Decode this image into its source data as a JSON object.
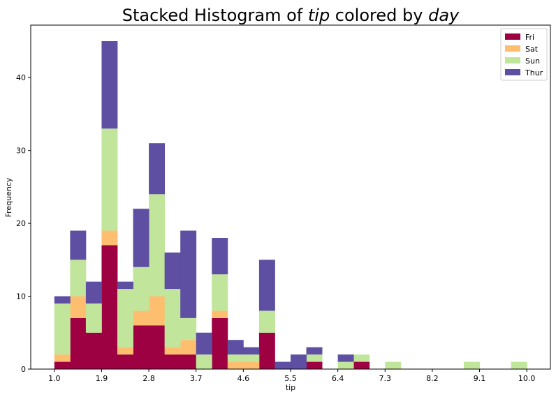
{
  "chart_data": {
    "type": "bar",
    "stacked": true,
    "title": {
      "prefix": "Stacked Histogram of ",
      "var1": "tip",
      "middle": " colored by ",
      "var2": "day"
    },
    "xlabel": "tip",
    "ylabel": "Frequency",
    "xlim": [
      0.55,
      10.45
    ],
    "ylim": [
      0,
      47.2
    ],
    "xticks": [
      1.0,
      1.9,
      2.8,
      3.7,
      4.6,
      5.5,
      6.4,
      7.3,
      8.2,
      9.1,
      10.0
    ],
    "xtick_labels": [
      "1.0",
      "1.9",
      "2.8",
      "3.7",
      "4.6",
      "5.5",
      "6.4",
      "7.3",
      "8.2",
      "9.1",
      "10.0"
    ],
    "yticks": [
      0,
      10,
      20,
      30,
      40
    ],
    "ytick_labels": [
      "0",
      "10",
      "20",
      "30",
      "40"
    ],
    "bin_start": 1.0,
    "bin_width": 0.3,
    "legend_position": "top-right",
    "series": [
      {
        "name": "Fri",
        "color": "#9e0142",
        "values": [
          1,
          7,
          5,
          17,
          2,
          6,
          6,
          2,
          2,
          0,
          7,
          0,
          0,
          5,
          0,
          0,
          1,
          0,
          0,
          1,
          0,
          0,
          0,
          0,
          0,
          0,
          0,
          0,
          0,
          0
        ]
      },
      {
        "name": "Sat",
        "color": "#fdbf6f",
        "values": [
          1,
          3,
          0,
          2,
          1,
          2,
          4,
          1,
          2,
          0,
          1,
          1,
          1,
          0,
          0,
          0,
          0,
          0,
          0,
          0,
          0,
          0,
          0,
          0,
          0,
          0,
          0,
          0,
          0,
          0
        ]
      },
      {
        "name": "Sun",
        "color": "#c2e59c",
        "values": [
          7,
          5,
          4,
          14,
          8,
          6,
          14,
          8,
          3,
          2,
          5,
          1,
          1,
          3,
          0,
          0,
          1,
          0,
          1,
          1,
          0,
          1,
          0,
          0,
          0,
          0,
          1,
          0,
          0,
          1
        ]
      },
      {
        "name": "Thur",
        "color": "#5e4fa2",
        "values": [
          1,
          4,
          3,
          12,
          1,
          8,
          7,
          5,
          12,
          3,
          5,
          2,
          1,
          7,
          1,
          2,
          1,
          0,
          1,
          0,
          0,
          0,
          0,
          0,
          0,
          0,
          0,
          0,
          0,
          0
        ]
      }
    ]
  }
}
